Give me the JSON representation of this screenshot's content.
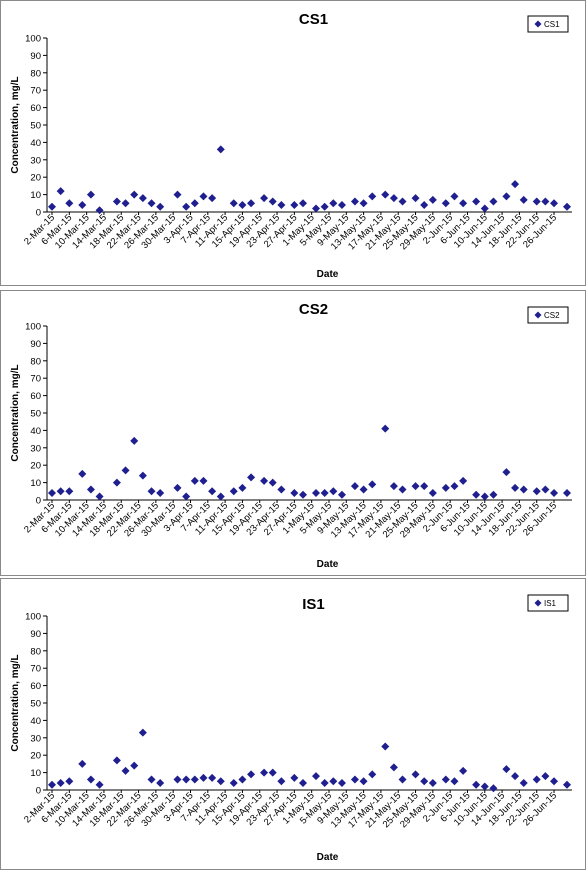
{
  "colors": {
    "marker": "#1f1f8f",
    "axis": "#000000",
    "frame": "#8a8a8a"
  },
  "chart_data": [
    {
      "type": "scatter",
      "title": "CS1",
      "xlabel": "Date",
      "ylabel": "Concentration, mg/L",
      "ylim": [
        0,
        100
      ],
      "yticks": [
        0,
        10,
        20,
        30,
        40,
        50,
        60,
        70,
        80,
        90,
        100
      ],
      "xlim": [
        "2015-03-02",
        "2015-06-29"
      ],
      "xtick_labels": [
        "2-Mar-15",
        "6-Mar-15",
        "10-Mar-15",
        "14-Mar-15",
        "18-Mar-15",
        "22-Mar-15",
        "26-Mar-15",
        "30-Mar-15",
        "3-Apr-15",
        "7-Apr-15",
        "11-Apr-15",
        "15-Apr-15",
        "19-Apr-15",
        "23-Apr-15",
        "27-Apr-15",
        "1-May-15",
        "5-May-15",
        "9-May-15",
        "13-May-15",
        "17-May-15",
        "21-May-15",
        "25-May-15",
        "29-May-15",
        "2-Jun-15",
        "6-Jun-15",
        "10-Jun-15",
        "14-Jun-15",
        "18-Jun-15",
        "22-Jun-15",
        "26-Jun-15"
      ],
      "legend": {
        "position": "top-right",
        "label": "CS1"
      },
      "series": [
        {
          "name": "CS1",
          "marker": "diamond",
          "points": [
            [
              "2015-03-02",
              3
            ],
            [
              "2015-03-04",
              12
            ],
            [
              "2015-03-06",
              5
            ],
            [
              "2015-03-09",
              4
            ],
            [
              "2015-03-11",
              10
            ],
            [
              "2015-03-13",
              1
            ],
            [
              "2015-03-17",
              6
            ],
            [
              "2015-03-19",
              5
            ],
            [
              "2015-03-21",
              10
            ],
            [
              "2015-03-23",
              8
            ],
            [
              "2015-03-25",
              5
            ],
            [
              "2015-03-27",
              3
            ],
            [
              "2015-03-31",
              10
            ],
            [
              "2015-04-02",
              3
            ],
            [
              "2015-04-04",
              5
            ],
            [
              "2015-04-06",
              9
            ],
            [
              "2015-04-08",
              8
            ],
            [
              "2015-04-10",
              36
            ],
            [
              "2015-04-13",
              5
            ],
            [
              "2015-04-15",
              4
            ],
            [
              "2015-04-17",
              5
            ],
            [
              "2015-04-20",
              8
            ],
            [
              "2015-04-22",
              6
            ],
            [
              "2015-04-24",
              4
            ],
            [
              "2015-04-27",
              4
            ],
            [
              "2015-04-29",
              5
            ],
            [
              "2015-05-02",
              2
            ],
            [
              "2015-05-04",
              3
            ],
            [
              "2015-05-06",
              5
            ],
            [
              "2015-05-08",
              4
            ],
            [
              "2015-05-11",
              6
            ],
            [
              "2015-05-13",
              5
            ],
            [
              "2015-05-15",
              9
            ],
            [
              "2015-05-18",
              10
            ],
            [
              "2015-05-20",
              8
            ],
            [
              "2015-05-22",
              6
            ],
            [
              "2015-05-25",
              8
            ],
            [
              "2015-05-27",
              4
            ],
            [
              "2015-05-29",
              7
            ],
            [
              "2015-06-01",
              5
            ],
            [
              "2015-06-03",
              9
            ],
            [
              "2015-06-05",
              5
            ],
            [
              "2015-06-08",
              6
            ],
            [
              "2015-06-10",
              2
            ],
            [
              "2015-06-12",
              6
            ],
            [
              "2015-06-15",
              9
            ],
            [
              "2015-06-17",
              16
            ],
            [
              "2015-06-19",
              7
            ],
            [
              "2015-06-22",
              6
            ],
            [
              "2015-06-24",
              6
            ],
            [
              "2015-06-26",
              5
            ],
            [
              "2015-06-29",
              3
            ]
          ]
        }
      ]
    },
    {
      "type": "scatter",
      "title": "CS2",
      "xlabel": "Date",
      "ylabel": "Concentration, mg/L",
      "ylim": [
        0,
        100
      ],
      "yticks": [
        0,
        10,
        20,
        30,
        40,
        50,
        60,
        70,
        80,
        90,
        100
      ],
      "xlim": [
        "2015-03-02",
        "2015-06-29"
      ],
      "xtick_labels": [
        "2-Mar-15",
        "6-Mar-15",
        "10-Mar-15",
        "14-Mar-15",
        "18-Mar-15",
        "22-Mar-15",
        "26-Mar-15",
        "30-Mar-15",
        "3-Apr-15",
        "7-Apr-15",
        "11-Apr-15",
        "15-Apr-15",
        "19-Apr-15",
        "23-Apr-15",
        "27-Apr-15",
        "1-May-15",
        "5-May-15",
        "9-May-15",
        "13-May-15",
        "17-May-15",
        "21-May-15",
        "25-May-15",
        "29-May-15",
        "2-Jun-15",
        "6-Jun-15",
        "10-Jun-15",
        "14-Jun-15",
        "18-Jun-15",
        "22-Jun-15",
        "26-Jun-15"
      ],
      "legend": {
        "position": "top-right",
        "label": "CS2"
      },
      "series": [
        {
          "name": "CS2",
          "marker": "diamond",
          "points": [
            [
              "2015-03-02",
              4
            ],
            [
              "2015-03-04",
              5
            ],
            [
              "2015-03-06",
              5
            ],
            [
              "2015-03-09",
              15
            ],
            [
              "2015-03-11",
              6
            ],
            [
              "2015-03-13",
              2
            ],
            [
              "2015-03-17",
              10
            ],
            [
              "2015-03-19",
              17
            ],
            [
              "2015-03-21",
              34
            ],
            [
              "2015-03-23",
              14
            ],
            [
              "2015-03-25",
              5
            ],
            [
              "2015-03-27",
              4
            ],
            [
              "2015-03-31",
              7
            ],
            [
              "2015-04-02",
              2
            ],
            [
              "2015-04-04",
              11
            ],
            [
              "2015-04-06",
              11
            ],
            [
              "2015-04-08",
              5
            ],
            [
              "2015-04-10",
              2
            ],
            [
              "2015-04-13",
              5
            ],
            [
              "2015-04-15",
              7
            ],
            [
              "2015-04-17",
              13
            ],
            [
              "2015-04-20",
              11
            ],
            [
              "2015-04-22",
              10
            ],
            [
              "2015-04-24",
              6
            ],
            [
              "2015-04-27",
              4
            ],
            [
              "2015-04-29",
              3
            ],
            [
              "2015-05-02",
              4
            ],
            [
              "2015-05-04",
              4
            ],
            [
              "2015-05-06",
              5
            ],
            [
              "2015-05-08",
              3
            ],
            [
              "2015-05-11",
              8
            ],
            [
              "2015-05-13",
              6
            ],
            [
              "2015-05-15",
              9
            ],
            [
              "2015-05-18",
              41
            ],
            [
              "2015-05-20",
              8
            ],
            [
              "2015-05-22",
              6
            ],
            [
              "2015-05-25",
              8
            ],
            [
              "2015-05-27",
              8
            ],
            [
              "2015-05-29",
              4
            ],
            [
              "2015-06-01",
              7
            ],
            [
              "2015-06-03",
              8
            ],
            [
              "2015-06-05",
              11
            ],
            [
              "2015-06-08",
              3
            ],
            [
              "2015-06-10",
              2
            ],
            [
              "2015-06-12",
              3
            ],
            [
              "2015-06-15",
              16
            ],
            [
              "2015-06-17",
              7
            ],
            [
              "2015-06-19",
              6
            ],
            [
              "2015-06-22",
              5
            ],
            [
              "2015-06-24",
              6
            ],
            [
              "2015-06-26",
              4
            ],
            [
              "2015-06-29",
              4
            ]
          ]
        }
      ]
    },
    {
      "type": "scatter",
      "title": "IS1",
      "xlabel": "Date",
      "ylabel": "Concentration, mg/L",
      "ylim": [
        0,
        100
      ],
      "yticks": [
        0,
        10,
        20,
        30,
        40,
        50,
        60,
        70,
        80,
        90,
        100
      ],
      "xlim": [
        "2015-03-02",
        "2015-06-29"
      ],
      "xtick_labels": [
        "2-Mar-15",
        "6-Mar-15",
        "10-Mar-15",
        "14-Mar-15",
        "18-Mar-15",
        "22-Mar-15",
        "26-Mar-15",
        "30-Mar-15",
        "3-Apr-15",
        "7-Apr-15",
        "11-Apr-15",
        "15-Apr-15",
        "19-Apr-15",
        "23-Apr-15",
        "27-Apr-15",
        "1-May-15",
        "5-May-15",
        "9-May-15",
        "13-May-15",
        "17-May-15",
        "21-May-15",
        "25-May-15",
        "29-May-15",
        "2-Jun-15",
        "6-Jun-15",
        "10-Jun-15",
        "14-Jun-15",
        "18-Jun-15",
        "22-Jun-15",
        "26-Jun-15"
      ],
      "legend": {
        "position": "top-right",
        "label": "IS1"
      },
      "series": [
        {
          "name": "IS1",
          "marker": "diamond",
          "points": [
            [
              "2015-03-02",
              3
            ],
            [
              "2015-03-04",
              4
            ],
            [
              "2015-03-06",
              5
            ],
            [
              "2015-03-09",
              15
            ],
            [
              "2015-03-11",
              6
            ],
            [
              "2015-03-13",
              3
            ],
            [
              "2015-03-17",
              17
            ],
            [
              "2015-03-19",
              11
            ],
            [
              "2015-03-21",
              14
            ],
            [
              "2015-03-23",
              33
            ],
            [
              "2015-03-25",
              6
            ],
            [
              "2015-03-27",
              4
            ],
            [
              "2015-03-31",
              6
            ],
            [
              "2015-04-02",
              6
            ],
            [
              "2015-04-04",
              6
            ],
            [
              "2015-04-06",
              7
            ],
            [
              "2015-04-08",
              7
            ],
            [
              "2015-04-10",
              5
            ],
            [
              "2015-04-13",
              4
            ],
            [
              "2015-04-15",
              6
            ],
            [
              "2015-04-17",
              9
            ],
            [
              "2015-04-20",
              10
            ],
            [
              "2015-04-22",
              10
            ],
            [
              "2015-04-24",
              5
            ],
            [
              "2015-04-27",
              7
            ],
            [
              "2015-04-29",
              4
            ],
            [
              "2015-05-02",
              8
            ],
            [
              "2015-05-04",
              4
            ],
            [
              "2015-05-06",
              5
            ],
            [
              "2015-05-08",
              4
            ],
            [
              "2015-05-11",
              6
            ],
            [
              "2015-05-13",
              5
            ],
            [
              "2015-05-15",
              9
            ],
            [
              "2015-05-18",
              25
            ],
            [
              "2015-05-20",
              13
            ],
            [
              "2015-05-22",
              6
            ],
            [
              "2015-05-25",
              9
            ],
            [
              "2015-05-27",
              5
            ],
            [
              "2015-05-29",
              4
            ],
            [
              "2015-06-01",
              6
            ],
            [
              "2015-06-03",
              5
            ],
            [
              "2015-06-05",
              11
            ],
            [
              "2015-06-08",
              3
            ],
            [
              "2015-06-10",
              2
            ],
            [
              "2015-06-12",
              1
            ],
            [
              "2015-06-15",
              12
            ],
            [
              "2015-06-17",
              8
            ],
            [
              "2015-06-19",
              4
            ],
            [
              "2015-06-22",
              6
            ],
            [
              "2015-06-24",
              8
            ],
            [
              "2015-06-26",
              5
            ],
            [
              "2015-06-29",
              3
            ]
          ]
        }
      ]
    }
  ]
}
